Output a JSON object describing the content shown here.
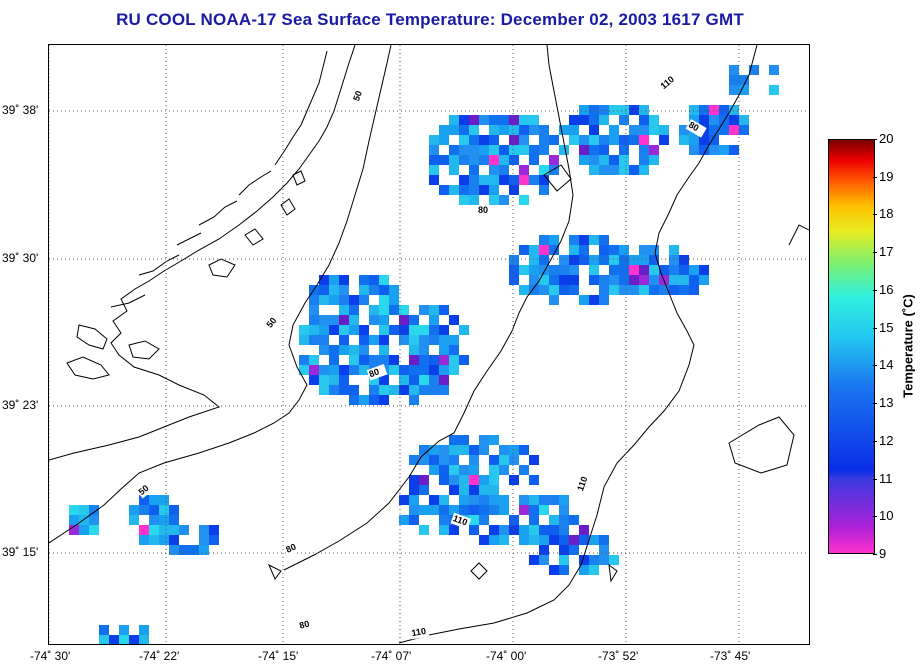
{
  "title": "RU COOL  NOAA-17  Sea Surface Temperature:  December 02, 2003 1617 GMT",
  "map": {
    "lat_labels": [
      "39˚ 38'",
      "39˚ 30'",
      "39˚ 23'",
      "39˚ 15'"
    ],
    "lon_labels": [
      "-74˚ 30'",
      "-74˚ 22'",
      "-74˚ 15'",
      "-74˚ 07'",
      "-74˚ 00'",
      "-73˚ 52'",
      "-73˚ 45'"
    ],
    "contour_labels": [
      "50",
      "110",
      "80",
      "80",
      "50",
      "80",
      "110",
      "80",
      "50",
      "110",
      "80",
      "110"
    ]
  },
  "colorbar": {
    "ticks": [
      "20",
      "19",
      "18",
      "17",
      "16",
      "15",
      "14",
      "13",
      "12",
      "11",
      "10",
      "9"
    ],
    "label": "Temperature (˚C)",
    "colors": {
      "min": "#ff33cc",
      "max": "#7a0000"
    }
  }
}
